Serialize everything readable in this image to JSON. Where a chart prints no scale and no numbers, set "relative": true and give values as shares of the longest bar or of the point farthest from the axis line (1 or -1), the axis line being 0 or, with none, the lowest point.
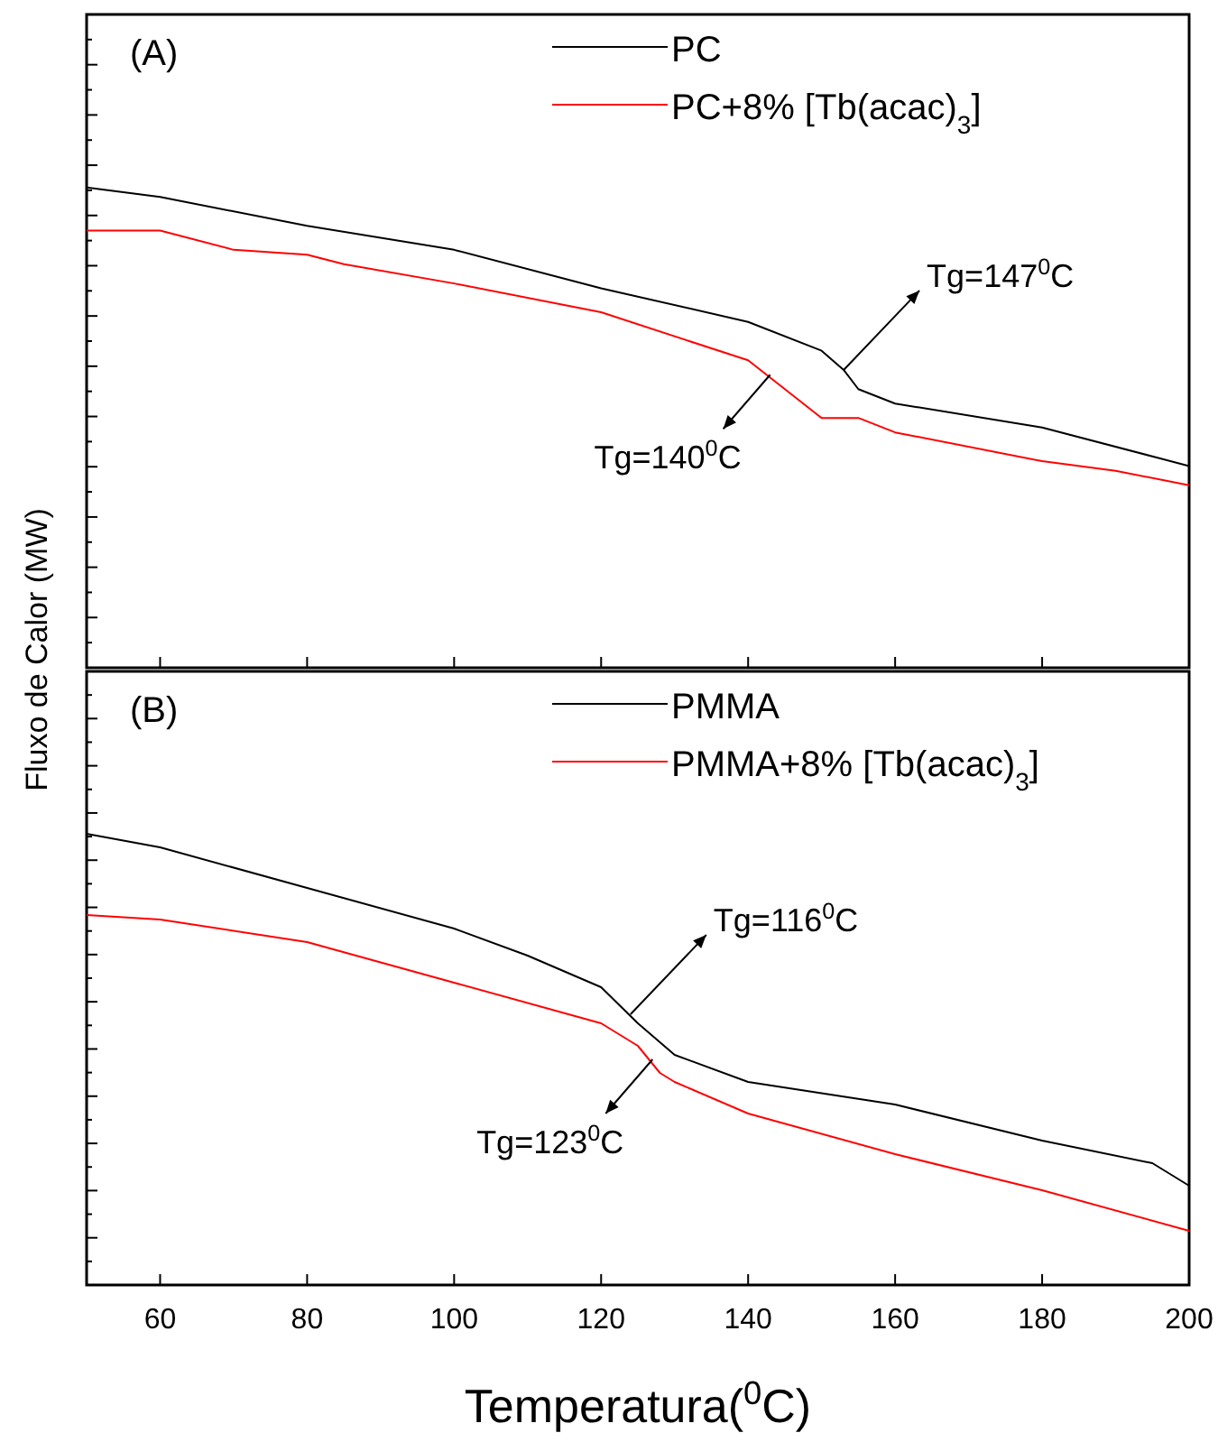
{
  "chart_data": [
    {
      "type": "line",
      "title": "(A)",
      "ylabel": "Fluxo de Calor (MW)",
      "relative": true,
      "xlim": [
        50,
        200
      ],
      "xticks": [
        60,
        80,
        100,
        120,
        140,
        160,
        180,
        200
      ],
      "tick_labels": false,
      "legend": "top",
      "grid": false,
      "series": [
        {
          "name": "PC",
          "color": "#000000",
          "x": [
            50,
            60,
            80,
            100,
            120,
            140,
            150,
            153,
            155,
            160,
            180,
            200
          ],
          "values": [
            1.0,
            0.98,
            0.92,
            0.87,
            0.79,
            0.72,
            0.66,
            0.62,
            0.58,
            0.55,
            0.5,
            0.42
          ]
        },
        {
          "name": "PC+8% [Tb(acac)$_{3}$]",
          "color": "#ff0000",
          "x": [
            50,
            60,
            70,
            80,
            85,
            100,
            120,
            140,
            145,
            150,
            155,
            160,
            180,
            190,
            200
          ],
          "values": [
            0.91,
            0.91,
            0.87,
            0.86,
            0.84,
            0.8,
            0.74,
            0.64,
            0.58,
            0.52,
            0.52,
            0.49,
            0.43,
            0.41,
            0.38
          ]
        }
      ],
      "annotations": [
        {
          "text": "Tg=147$^{0}$C",
          "x": 153,
          "y": 0.62
        },
        {
          "text": "Tg=140$^{0}$C",
          "x": 143,
          "y": 0.61
        }
      ]
    },
    {
      "type": "line",
      "title": "(B)",
      "xlabel": "Temperatura($^{0}$C)",
      "relative": true,
      "xlim": [
        50,
        200
      ],
      "xticks": [
        60,
        80,
        100,
        120,
        140,
        160,
        180,
        200
      ],
      "tick_labels": "x",
      "legend": "top",
      "grid": false,
      "series": [
        {
          "name": "PMMA",
          "color": "#000000",
          "x": [
            50,
            60,
            80,
            100,
            110,
            120,
            125,
            130,
            140,
            160,
            180,
            195,
            200
          ],
          "values": [
            1.0,
            0.97,
            0.88,
            0.79,
            0.73,
            0.66,
            0.58,
            0.51,
            0.45,
            0.4,
            0.32,
            0.27,
            0.22
          ]
        },
        {
          "name": "PMMA+8% [Tb(acac)$_{3}$]",
          "color": "#ff0000",
          "x": [
            50,
            60,
            80,
            100,
            120,
            125,
            128,
            130,
            140,
            160,
            180,
            200
          ],
          "values": [
            0.82,
            0.81,
            0.76,
            0.67,
            0.58,
            0.53,
            0.47,
            0.45,
            0.38,
            0.29,
            0.21,
            0.12
          ]
        }
      ],
      "annotations": [
        {
          "text": "Tg=116$^{0}$C",
          "x": 124,
          "y": 0.6
        },
        {
          "text": "Tg=123$^{0}$C",
          "x": 127,
          "y": 0.5
        }
      ]
    }
  ]
}
